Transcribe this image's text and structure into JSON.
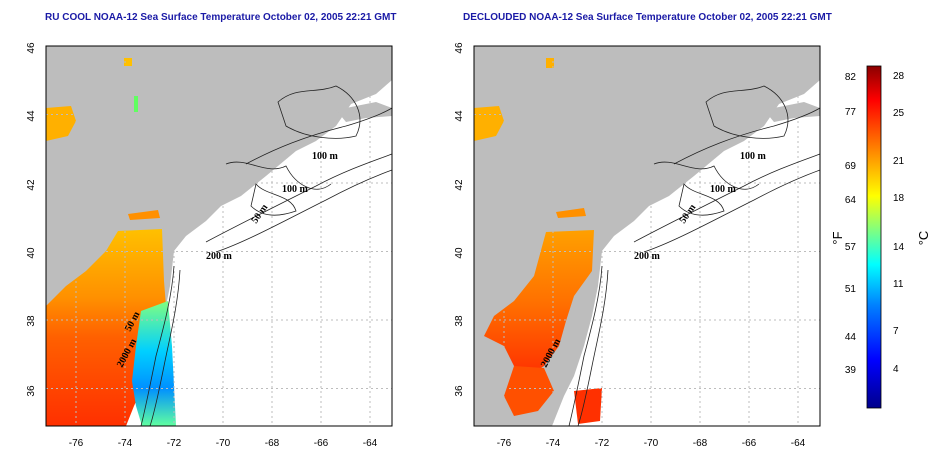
{
  "panels": [
    {
      "id": "left",
      "title": "RU COOL NOAA-12 Sea Surface Temperature October 02, 2005 22:21 GMT",
      "contour_labels": [
        "100 m",
        "100 m",
        "50 m",
        "200 m",
        "50 m",
        "2000 m"
      ]
    },
    {
      "id": "right",
      "title": "DECLOUDED NOAA-12 Sea Surface Temperature October 02, 2005 22:21 GMT",
      "contour_labels": [
        "100 m",
        "100 m",
        "50 m",
        "200 m",
        "2000 m"
      ]
    }
  ],
  "map_axes": {
    "x_ticks": [
      "-76",
      "-74",
      "-72",
      "-70",
      "-68",
      "-66",
      "-64"
    ],
    "y_ticks": [
      "36",
      "38",
      "40",
      "42",
      "44",
      "46"
    ]
  },
  "colorbar": {
    "fahrenheit_ticks": [
      "82",
      "77",
      "69",
      "64",
      "57",
      "51",
      "44",
      "39"
    ],
    "celsius_ticks": [
      "28",
      "25",
      "21",
      "18",
      "14",
      "11",
      "7",
      "4"
    ],
    "fahrenheit_unit": "°F",
    "celsius_unit": "°C",
    "colors": [
      "#00008b",
      "#0000ff",
      "#0080ff",
      "#00ffff",
      "#80ff80",
      "#ffff00",
      "#ff8000",
      "#ff0000",
      "#8b0000"
    ]
  },
  "colors": {
    "land": "#bdbdbd",
    "title_text": "#1a1aa6",
    "grid": "#bdbdbd"
  }
}
